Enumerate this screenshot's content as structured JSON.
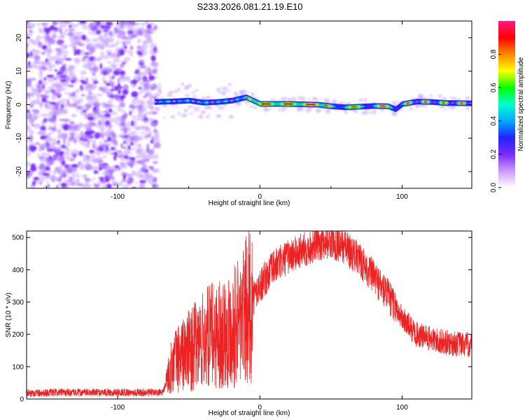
{
  "title": "S233.2026.081.21.19.E10",
  "chart_data": [
    {
      "type": "heatmap",
      "xlabel": "Height of straight line (km)",
      "ylabel": "Frequency (Hz)",
      "xlim": [
        -164,
        149
      ],
      "ylim": [
        -25,
        25
      ],
      "xticks": [
        -100,
        0,
        100
      ],
      "xtick_labels": [
        "-100",
        "0",
        "100"
      ],
      "yticks": [
        -20,
        -10,
        0,
        10,
        20
      ],
      "ytick_labels": [
        "-20",
        "-10",
        "0",
        "10",
        "20"
      ],
      "colorbar": {
        "label": "Normalized spectral amplitude",
        "range": [
          0,
          1
        ],
        "ticks": [
          0.0,
          0.2,
          0.4,
          0.6,
          0.8
        ],
        "tick_labels": [
          "0.0",
          "0.2",
          "0.4",
          "0.6",
          "0.8"
        ],
        "colors": [
          "#ffffff",
          "#cc99ff",
          "#7a2bff",
          "#2222ff",
          "#00aaff",
          "#00ffcc",
          "#00ff00",
          "#ffff00",
          "#ff8800",
          "#ff0000",
          "#ff1a80"
        ]
      },
      "noise_region_x": [
        -164,
        -74
      ],
      "signal_start_x": -74,
      "signal_track": {
        "x": [
          -74,
          -60,
          -50,
          -40,
          -30,
          -20,
          -10,
          0,
          20,
          40,
          50,
          60,
          70,
          80,
          90,
          95,
          100,
          110,
          120,
          130,
          149
        ],
        "freq": [
          0.8,
          1.0,
          1.2,
          0.6,
          0.8,
          1.2,
          2.2,
          0.2,
          0.2,
          0.0,
          -0.5,
          -0.8,
          -0.6,
          -0.4,
          -0.5,
          -1.4,
          0.2,
          0.9,
          0.8,
          0.5,
          0.4
        ]
      }
    },
    {
      "type": "line",
      "xlabel": "Height of straight line (km)",
      "ylabel": "SNR (10 * v/v)",
      "xlim": [
        -164,
        149
      ],
      "ylim": [
        0,
        520
      ],
      "xticks": [
        -100,
        0,
        100
      ],
      "xtick_labels": [
        "-100",
        "0",
        "100"
      ],
      "yticks": [
        0,
        100,
        200,
        300,
        400,
        500
      ],
      "ytick_labels": [
        "0",
        "100",
        "200",
        "300",
        "400",
        "500"
      ],
      "series": [
        {
          "name": "SNR",
          "color": "#ee2222",
          "x": [
            -164,
            -140,
            -120,
            -100,
            -80,
            -68,
            -64,
            -60,
            -55,
            -50,
            -45,
            -40,
            -35,
            -30,
            -25,
            -20,
            -15,
            -10,
            -5,
            0,
            10,
            20,
            30,
            40,
            50,
            60,
            70,
            80,
            90,
            100,
            110,
            120,
            130,
            140,
            149
          ],
          "y": [
            18,
            20,
            20,
            21,
            20,
            20,
            80,
            120,
            135,
            150,
            165,
            180,
            195,
            200,
            210,
            220,
            240,
            270,
            310,
            350,
            410,
            440,
            460,
            480,
            490,
            470,
            430,
            380,
            320,
            250,
            200,
            185,
            175,
            170,
            165
          ]
        }
      ]
    }
  ]
}
